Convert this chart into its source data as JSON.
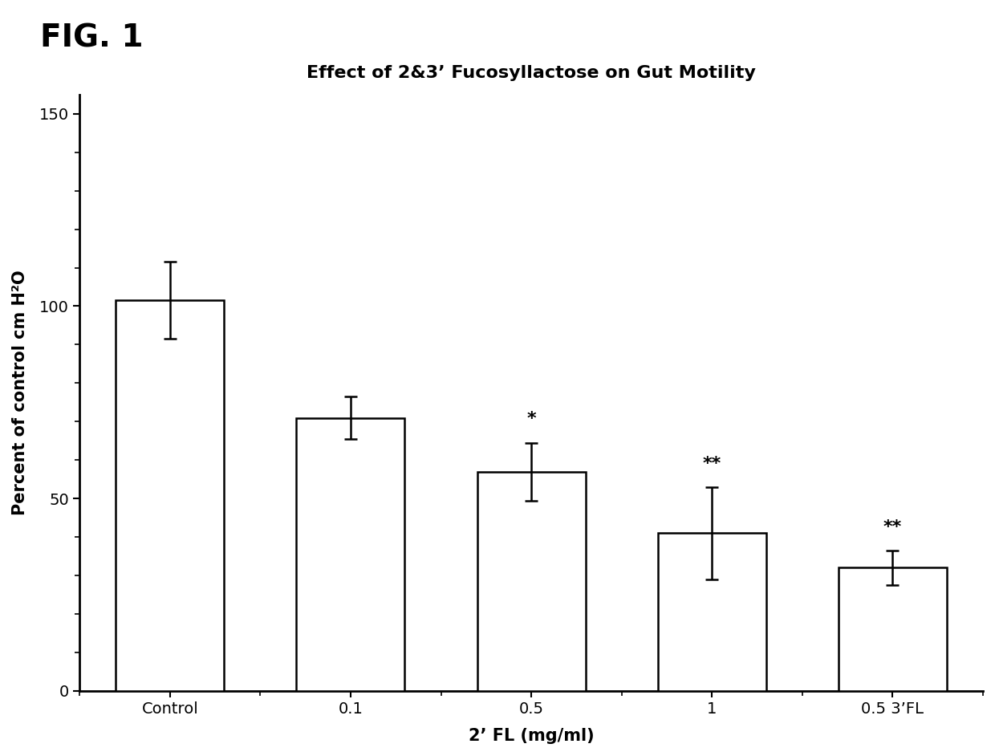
{
  "title": "Effect of 2&3’ Fucosyllactose on Gut Motility",
  "xlabel": "2’ FL (mg/ml)",
  "ylabel": "Percent of control cm H²O",
  "categories": [
    "Control",
    "0.1",
    "0.5",
    "1",
    "0.5 3’FL"
  ],
  "values": [
    101.5,
    71.0,
    57.0,
    41.0,
    32.0
  ],
  "errors": [
    10.0,
    5.5,
    7.5,
    12.0,
    4.5
  ],
  "significance": [
    "",
    "",
    "*",
    "**",
    "**"
  ],
  "ylim": [
    0,
    155
  ],
  "yticks": [
    0,
    50,
    100,
    150
  ],
  "bar_color": "#ffffff",
  "bar_edgecolor": "#000000",
  "bar_linewidth": 1.8,
  "error_color": "#000000",
  "error_linewidth": 1.8,
  "error_capsize": 6,
  "title_fontsize": 16,
  "label_fontsize": 15,
  "tick_fontsize": 14,
  "sig_fontsize": 16,
  "fig_label": "FIG. 1",
  "fig_label_fontsize": 28,
  "background_color": "#ffffff"
}
